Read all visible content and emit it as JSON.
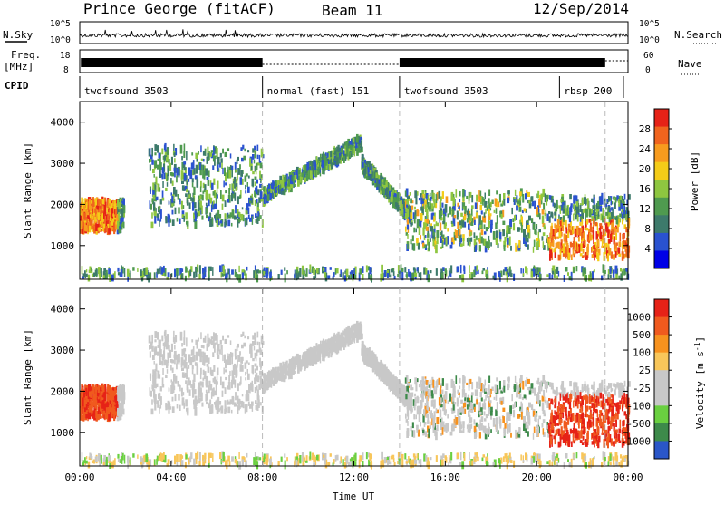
{
  "header": {
    "station": "Prince George (fitACF)",
    "beam": "Beam 11",
    "date": "12/Sep/2014"
  },
  "top_panels": {
    "nsky_label": "N.Sky",
    "nsky_ticks": [
      "10^5",
      "10^0"
    ],
    "nsky_right_ticks": [
      "10^5",
      "10^0"
    ],
    "nsearch_label": "N.Search",
    "freq_label": "Freq.",
    "freq_unit": "[MHz]",
    "freq_ticks": [
      "18",
      "8"
    ],
    "nave_label": "Nave",
    "nave_ticks": [
      "60",
      "0"
    ],
    "cpid_label": "CPID",
    "cpid_segments": [
      {
        "name": "twofsound 3503",
        "start_h": 0,
        "end_h": 8
      },
      {
        "name": "normal (fast) 151",
        "start_h": 8,
        "end_h": 14
      },
      {
        "name": "twofsound 3503",
        "start_h": 14,
        "end_h": 21
      },
      {
        "name": "rbsp 200",
        "start_h": 21,
        "end_h": 23.8
      }
    ]
  },
  "chart_data": [
    {
      "type": "heatmap",
      "title": "",
      "ylabel": "Slant Range [km]",
      "yticks": [
        "1000",
        "2000",
        "3000",
        "4000"
      ],
      "ylim": [
        180,
        4500
      ],
      "xlim": [
        0,
        24
      ],
      "xticks": [
        "00:00",
        "04:00",
        "08:00",
        "12:00",
        "16:00",
        "20:00",
        "00:00"
      ],
      "colorbar_label": "Power [dB]",
      "colorbar_ticks": [
        "28",
        "24",
        "20",
        "16",
        "12",
        "8",
        "4"
      ],
      "colorbar_colors": [
        "#0000e6",
        "#2a52d0",
        "#3d7a6b",
        "#4f9a4f",
        "#8ec640",
        "#f4cc18",
        "#f79b1e",
        "#f0641e",
        "#e62217"
      ],
      "scatter_bands_desc": [
        {
          "t0": 0,
          "t1": 1.9,
          "r0": 1350,
          "r1": 2100
        },
        {
          "t0": 3.0,
          "t1": 8.0,
          "r0": 1500,
          "r1": 3400
        },
        {
          "t0": 8.0,
          "t1": 12.3,
          "r0": 2200,
          "r1": 3500
        },
        {
          "t0": 12.3,
          "t1": 14.5,
          "r0": 1700,
          "r1": 3000
        },
        {
          "t0": 14.2,
          "t1": 20.5,
          "r0": 900,
          "r1": 2300
        },
        {
          "t0": 20.5,
          "t1": 24,
          "r0": 700,
          "r1": 2200
        },
        {
          "t0": 0,
          "t1": 24,
          "r0": 200,
          "r1": 450
        }
      ]
    },
    {
      "type": "heatmap",
      "title": "",
      "ylabel": "Slant Range [km]",
      "yticks": [
        "1000",
        "2000",
        "3000",
        "4000"
      ],
      "ylim": [
        180,
        4500
      ],
      "xlim": [
        0,
        24
      ],
      "xticks": [
        "00:00",
        "04:00",
        "08:00",
        "12:00",
        "16:00",
        "20:00",
        "00:00"
      ],
      "xlabel": "Time UT",
      "colorbar_label": "Velocity [m s",
      "colorbar_unit_sup": "-1",
      "colorbar_unit_close": "]",
      "colorbar_ticks": [
        "1000",
        "500",
        "100",
        "25",
        "-25",
        "-100",
        "-500",
        "-1000"
      ],
      "colorbar_colors": [
        "#e62217",
        "#f05a1e",
        "#f7921e",
        "#f8c65a",
        "#c8c8c8",
        "#c8c8c8",
        "#6ad040",
        "#3d8a4a",
        "#2a56c8"
      ]
    }
  ]
}
